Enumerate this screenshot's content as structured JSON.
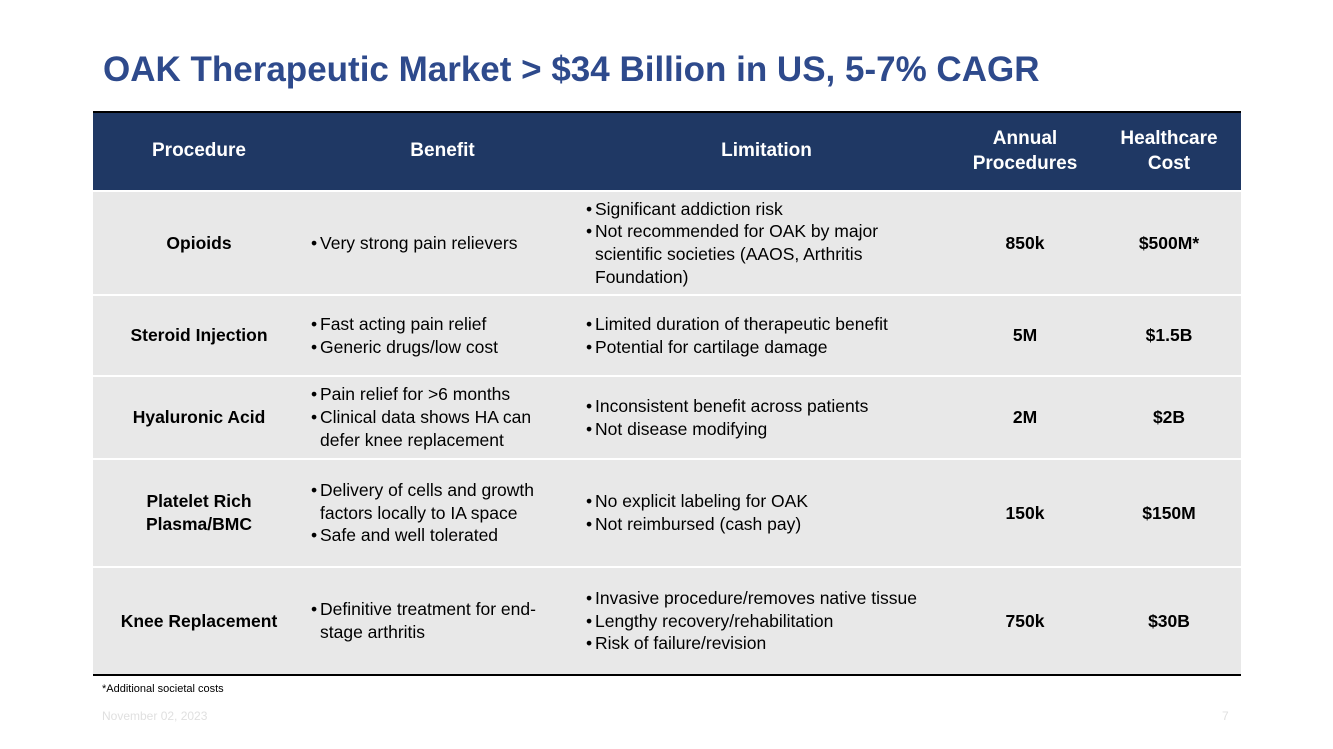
{
  "title": "OAK Therapeutic Market > $34 Billion in US, 5-7% CAGR",
  "table": {
    "headers": {
      "procedure": "Procedure",
      "benefit": "Benefit",
      "limitation": "Limitation",
      "annual": "Annual Procedures",
      "cost": "Healthcare Cost"
    },
    "rows": [
      {
        "procedure": "Opioids",
        "benefits": [
          "Very strong pain relievers"
        ],
        "limitations": [
          "Significant addiction risk",
          "Not recommended for OAK by major scientific societies (AAOS, Arthritis Foundation)"
        ],
        "annual": "850k",
        "cost": "$500M*"
      },
      {
        "procedure": "Steroid Injection",
        "benefits": [
          "Fast acting pain relief",
          "Generic drugs/low cost"
        ],
        "limitations": [
          "Limited duration of therapeutic benefit",
          "Potential for cartilage damage"
        ],
        "annual": "5M",
        "cost": "$1.5B"
      },
      {
        "procedure": "Hyaluronic Acid",
        "benefits": [
          "Pain relief for >6 months",
          "Clinical data shows HA can defer knee replacement"
        ],
        "limitations": [
          "Inconsistent benefit across patients",
          "Not disease modifying"
        ],
        "annual": "2M",
        "cost": "$2B"
      },
      {
        "procedure": "Platelet Rich Plasma/BMC",
        "benefits": [
          "Delivery of cells and growth factors locally to IA space",
          "Safe and well tolerated"
        ],
        "limitations": [
          "No explicit labeling for OAK",
          "Not reimbursed (cash pay)"
        ],
        "annual": "150k",
        "cost": "$150M"
      },
      {
        "procedure": "Knee Replacement",
        "benefits": [
          "Definitive treatment for end-stage arthritis"
        ],
        "limitations": [
          "Invasive procedure/removes native tissue",
          "Lengthy recovery/rehabilitation",
          "Risk of failure/revision"
        ],
        "annual": "750k",
        "cost": "$30B"
      }
    ]
  },
  "footnote": "*Additional societal costs",
  "date": "November 02, 2023",
  "page_number": "7"
}
